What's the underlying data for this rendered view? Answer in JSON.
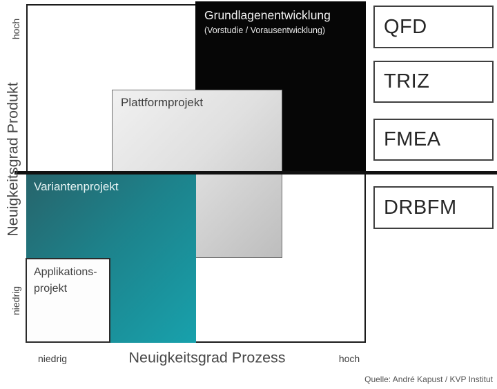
{
  "matrix": {
    "y_axis": {
      "title": "Neuigkeitsgrad Produkt",
      "top_label": "hoch",
      "bottom_label": "niedrig"
    },
    "x_axis": {
      "title": "Neuigkeitsgrad Prozess",
      "left_label": "niedrig",
      "right_label": "hoch"
    },
    "regions": {
      "grundlagen": {
        "label": "Grundlagenentwicklung",
        "sublabel": "(Vorstudie / Vorausentwicklung)",
        "color": "#060606"
      },
      "plattform": {
        "label": "Plattformprojekt",
        "color": "#d9d9d9"
      },
      "variante": {
        "label": "Variantenprojekt",
        "color": "#1b8e98"
      },
      "applikation": {
        "label_line1": "Applikations-",
        "label_line2": "projekt",
        "color": "#ffffff"
      }
    }
  },
  "methods": {
    "qfd": {
      "label": "QFD"
    },
    "triz": {
      "label": "TRIZ"
    },
    "fmea": {
      "label": "FMEA"
    },
    "drbfm": {
      "label": "DRBFM"
    }
  },
  "caption": "Quelle: André Kapust / KVP Institut"
}
